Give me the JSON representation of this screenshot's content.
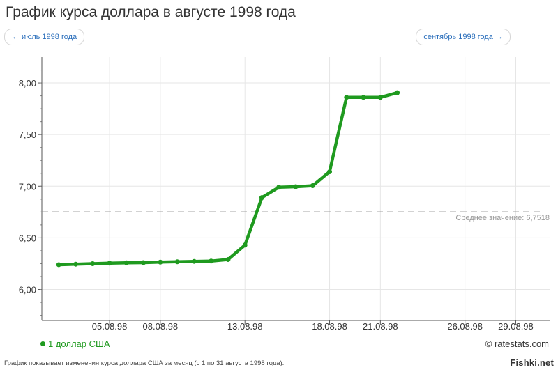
{
  "header": {
    "title": "График курса доллара в августе 1998 года",
    "prev_label": "← июль 1998 года",
    "next_label": "сентябрь 1998 года →"
  },
  "chart_data": {
    "type": "line",
    "title": "График курса доллара в августе 1998 года",
    "ylim": [
      5.7,
      8.25
    ],
    "yticks": [
      6.0,
      6.5,
      7.0,
      7.5,
      8.0
    ],
    "ytick_labels": [
      "6,00",
      "6,50",
      "7,00",
      "7,50",
      "8,00"
    ],
    "xlim": [
      "1998-08-01",
      "1998-08-31"
    ],
    "xticks": [
      "1998-08-05",
      "1998-08-08",
      "1998-08-13",
      "1998-08-18",
      "1998-08-21",
      "1998-08-26",
      "1998-08-29"
    ],
    "xtick_labels": [
      "05.08.98",
      "08.08.98",
      "13.08.98",
      "18.08.98",
      "21.08.98",
      "26.08.98",
      "29.08.98"
    ],
    "grid": true,
    "series": [
      {
        "name": "1 доллар США",
        "color": "#1f9a1f",
        "points": [
          {
            "x": "1998-08-02",
            "y": 6.24
          },
          {
            "x": "1998-08-03",
            "y": 6.245
          },
          {
            "x": "1998-08-04",
            "y": 6.25
          },
          {
            "x": "1998-08-05",
            "y": 6.255
          },
          {
            "x": "1998-08-06",
            "y": 6.258
          },
          {
            "x": "1998-08-07",
            "y": 6.26
          },
          {
            "x": "1998-08-08",
            "y": 6.265
          },
          {
            "x": "1998-08-09",
            "y": 6.268
          },
          {
            "x": "1998-08-10",
            "y": 6.272
          },
          {
            "x": "1998-08-11",
            "y": 6.275
          },
          {
            "x": "1998-08-12",
            "y": 6.29
          },
          {
            "x": "1998-08-13",
            "y": 6.43
          },
          {
            "x": "1998-08-14",
            "y": 6.89
          },
          {
            "x": "1998-08-15",
            "y": 6.99
          },
          {
            "x": "1998-08-16",
            "y": 6.995
          },
          {
            "x": "1998-08-17",
            "y": 7.005
          },
          {
            "x": "1998-08-18",
            "y": 7.14
          },
          {
            "x": "1998-08-19",
            "y": 7.86
          },
          {
            "x": "1998-08-20",
            "y": 7.86
          },
          {
            "x": "1998-08-21",
            "y": 7.86
          },
          {
            "x": "1998-08-22",
            "y": 7.905
          }
        ]
      }
    ],
    "average": {
      "label": "Среднее значение: 6,7518",
      "value": 6.7518
    },
    "legend": "bottom-left"
  },
  "footer": {
    "legend_label": "1 доллар США",
    "credit": "© ratestats.com",
    "note": "График показывает изменения курса доллара США за месяц (с 1 по 31 августа 1998 года).",
    "watermark": "Fishki.net"
  }
}
